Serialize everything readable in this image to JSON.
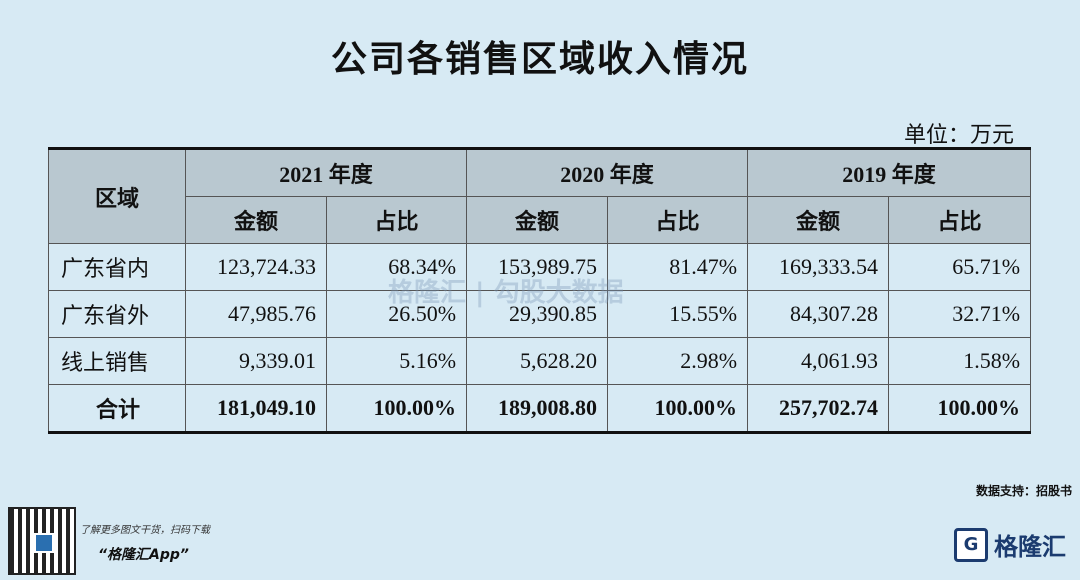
{
  "title": "公司各销售区域收入情况",
  "unit": "单位：万元",
  "table": {
    "header_area": "区域",
    "years": [
      "2021 年度",
      "2020 年度",
      "2019 年度"
    ],
    "sub_headers": [
      "金额",
      "占比",
      "金额",
      "占比",
      "金额",
      "占比"
    ],
    "rows": [
      {
        "region": "广东省内",
        "values": [
          "123,724.33",
          "68.34%",
          "153,989.75",
          "81.47%",
          "169,333.54",
          "65.71%"
        ]
      },
      {
        "region": "广东省外",
        "values": [
          "47,985.76",
          "26.50%",
          "29,390.85",
          "15.55%",
          "84,307.28",
          "32.71%"
        ]
      },
      {
        "region": "线上销售",
        "values": [
          "9,339.01",
          "5.16%",
          "5,628.20",
          "2.98%",
          "4,061.93",
          "1.58%"
        ]
      }
    ],
    "total": {
      "region": "合计",
      "values": [
        "181,049.10",
        "100.00%",
        "189,008.80",
        "100.00%",
        "257,702.74",
        "100.00%"
      ]
    }
  },
  "watermark": "格隆汇 | 勾股大数据",
  "source": "数据支持：招股书",
  "promo": {
    "line1": "了解更多图文干货，扫码下载",
    "line2": "“格隆汇App”"
  },
  "logo": {
    "mark": "G",
    "text": "格隆汇"
  }
}
